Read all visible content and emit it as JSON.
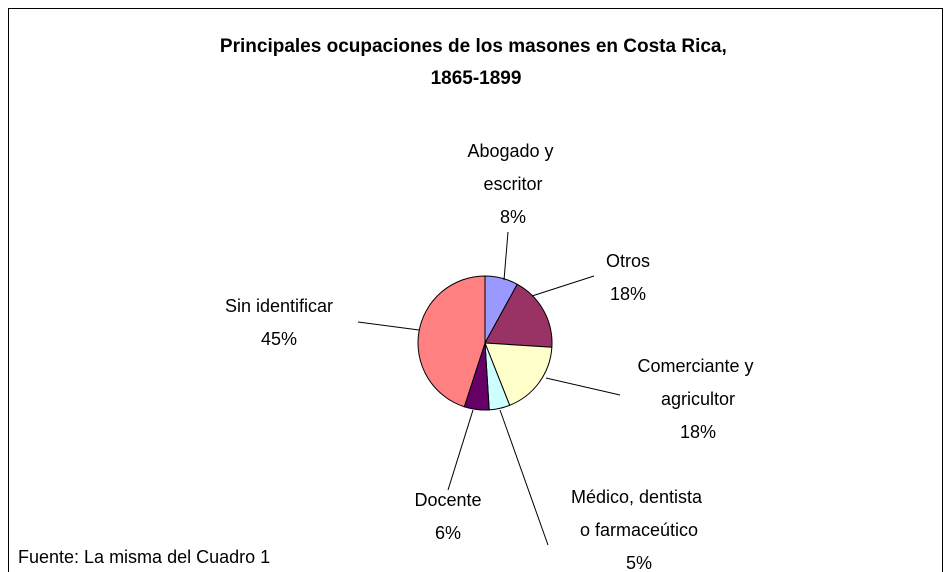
{
  "chart_data": {
    "type": "pie",
    "title": "Principales ocupaciones de los masones en Costa Rica, 1865-1899",
    "categories": [
      "Abogado y escritor",
      "Otros",
      "Comerciante y agricultor",
      "Médico, dentista o farmaceútico",
      "Docente",
      "Sin identificar"
    ],
    "values": [
      8,
      18,
      18,
      5,
      6,
      45
    ],
    "value_labels": [
      "8%",
      "18%",
      "18%",
      "5%",
      "6%",
      "45%"
    ],
    "colors": [
      "#9999ff",
      "#993366",
      "#ffffcc",
      "#ccffff",
      "#660066",
      "#ff8080"
    ],
    "note": "Fuente: La misma del Cuadro 1"
  }
}
